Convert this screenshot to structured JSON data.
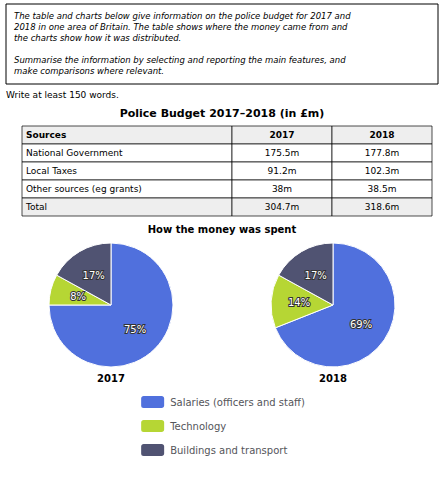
{
  "chart_data": [
    {
      "type": "table",
      "title": "Police Budget 2017–2018 (in £m)",
      "xlabel": "Sources",
      "annotations": [
        "The table and charts below give information on the police budget for 2017 and\n2018 in one area of Britain. The table shows where the money came from and\nthe charts show how it was distributed.\n\nSummarise the information by selecting and reporting the main features, and\nmake comparisons where relevant.",
        "Write at least 150 words."
      ],
      "categories": [
        "National Government",
        "Local Taxes",
        "Other sources (eg grants)",
        "Total"
      ],
      "series": [
        {
          "name": "2017",
          "values": [
            175.5,
            91.2,
            38,
            304.7
          ],
          "value_labels": [
            "175.5m",
            "91.2m",
            "38m",
            "304.7m"
          ]
        },
        {
          "name": "2018",
          "values": [
            177.8,
            102.3,
            38.5,
            318.6
          ],
          "value_labels": [
            "177.8m",
            "102.3m",
            "38.5m",
            "318.6m"
          ]
        }
      ]
    },
    {
      "type": "pie",
      "title": "How the money was spent",
      "categories": [
        "Salaries (officers and staff)",
        "Technology",
        "Buildings and transport"
      ],
      "series": [
        {
          "name": "2017",
          "values": [
            75,
            8,
            17
          ],
          "value_labels": [
            "75%",
            "8%",
            "17%"
          ]
        },
        {
          "name": "2018",
          "values": [
            69,
            14,
            17
          ],
          "value_labels": [
            "69%",
            "14%",
            "17%"
          ]
        }
      ],
      "data_labels": true,
      "legend": "bottom"
    }
  ]
}
